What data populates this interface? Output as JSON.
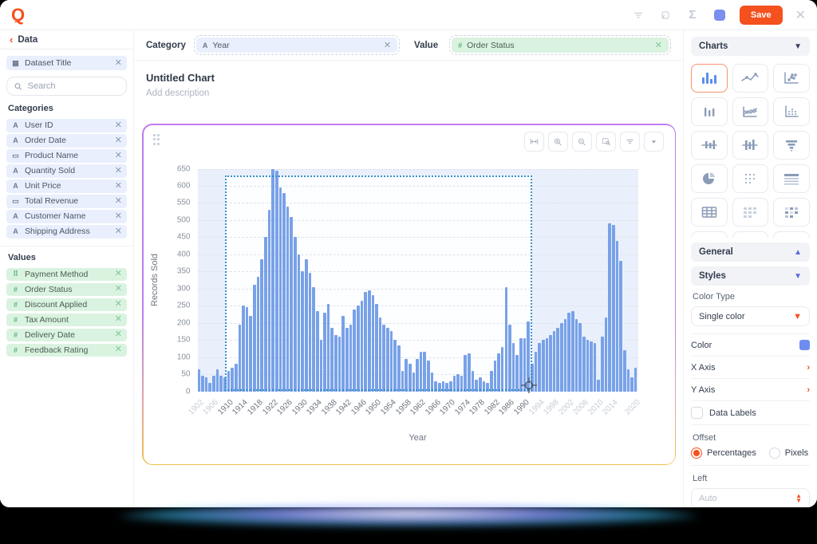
{
  "app": {
    "logo_letter": "Q",
    "accent_color": "#f4511e"
  },
  "header": {
    "icons": [
      "filter-lines-icon",
      "transform-icon",
      "sigma-icon",
      "blue-square-icon"
    ],
    "sigma_glyph": "Σ",
    "save_label": "Save",
    "close_glyph": "✕"
  },
  "sidebar": {
    "back_label": "Data",
    "dataset_chip": {
      "icon": "table-icon",
      "label": "Dataset Title",
      "remove_glyph": "✕"
    },
    "search_placeholder": "Search",
    "categories_title": "Categories",
    "categories": [
      {
        "icon": "text-field-icon",
        "label": "User ID"
      },
      {
        "icon": "text-field-icon",
        "label": "Order Date"
      },
      {
        "icon": "calendar-icon",
        "label": "Product Name"
      },
      {
        "icon": "text-field-icon",
        "label": "Quantity Sold"
      },
      {
        "icon": "text-field-icon",
        "label": "Unit Price"
      },
      {
        "icon": "calendar-icon",
        "label": "Total Revenue"
      },
      {
        "icon": "text-field-icon",
        "label": "Customer Name"
      },
      {
        "icon": "text-field-icon",
        "label": "Shipping Address"
      }
    ],
    "values_title": "Values",
    "values": [
      {
        "icon": "drag-handle-icon",
        "label": "Payment Method"
      },
      {
        "icon": "hash-icon",
        "label": "Order Status"
      },
      {
        "icon": "hash-icon",
        "label": "Discount Applied"
      },
      {
        "icon": "hash-icon",
        "label": "Tax Amount"
      },
      {
        "icon": "hash-icon",
        "label": "Delivery Date"
      },
      {
        "icon": "hash-icon",
        "label": "Feedback Rating"
      }
    ]
  },
  "builder": {
    "category_label": "Category",
    "category_chip": {
      "icon": "text-field-icon",
      "label": "Year",
      "remove_glyph": "✕"
    },
    "value_label": "Value",
    "value_chip": {
      "icon": "hash-icon",
      "label": "Order Status",
      "remove_glyph": "✕"
    },
    "title": "Untitled Chart",
    "description_placeholder": "Add description"
  },
  "chart_toolbar": [
    "fit-width-icon",
    "zoom-in-icon",
    "zoom-out-icon",
    "box-zoom-icon",
    "filter-lines-icon",
    "caret-down-icon"
  ],
  "chart_data": {
    "type": "bar",
    "title": "",
    "xlabel": "Year",
    "ylabel": "Records Sold",
    "x_range": [
      1902,
      2020
    ],
    "ylim": [
      0,
      650
    ],
    "grid": true,
    "legend": "none",
    "bar_color": "#78a1e8",
    "y_ticks": [
      0,
      50,
      100,
      150,
      200,
      250,
      300,
      350,
      400,
      450,
      500,
      550,
      600,
      650
    ],
    "x_tick_years": [
      1902,
      1906,
      1910,
      1914,
      1918,
      1922,
      1926,
      1930,
      1934,
      1938,
      1942,
      1946,
      1950,
      1954,
      1958,
      1962,
      1966,
      1970,
      1974,
      1978,
      1982,
      1986,
      1990,
      1994,
      1998,
      2002,
      2006,
      2010,
      2014,
      2020
    ],
    "values": [
      65,
      45,
      40,
      25,
      45,
      65,
      45,
      40,
      60,
      70,
      80,
      195,
      250,
      245,
      220,
      310,
      335,
      385,
      450,
      530,
      650,
      645,
      595,
      580,
      540,
      510,
      450,
      400,
      350,
      385,
      345,
      305,
      235,
      150,
      230,
      255,
      185,
      165,
      160,
      220,
      185,
      195,
      240,
      250,
      265,
      290,
      295,
      280,
      255,
      215,
      195,
      185,
      175,
      150,
      135,
      60,
      95,
      80,
      55,
      95,
      115,
      115,
      90,
      55,
      30,
      25,
      30,
      25,
      30,
      45,
      50,
      45,
      105,
      110,
      60,
      35,
      40,
      30,
      25,
      60,
      90,
      110,
      130,
      305,
      195,
      140,
      105,
      155,
      155,
      205,
      80,
      115,
      140,
      150,
      155,
      165,
      175,
      185,
      200,
      210,
      230,
      235,
      210,
      200,
      160,
      150,
      145,
      140,
      35,
      160,
      215,
      490,
      485,
      440,
      380,
      120,
      65,
      40,
      70
    ],
    "brush_selection": {
      "start_year": 1909,
      "end_year": 1992,
      "top_value": 630
    }
  },
  "charts_panel": {
    "header": "Charts",
    "selected_index": 0,
    "types": [
      "bar-chart",
      "line-chart",
      "scatter-plot",
      "bar-chart-thin",
      "multi-line-chart",
      "dot-column-chart",
      "candlestick-chart",
      "candlestick-dense",
      "funnel-chart",
      "pie-chart",
      "dot-matrix",
      "table-header",
      "table-grid",
      "matrix-light",
      "heatmap",
      "hidden",
      "hidden",
      "hidden"
    ],
    "general_label": "General",
    "styles_label": "Styles",
    "color_type_label": "Color Type",
    "color_type_value": "Single color",
    "color_label": "Color",
    "color_value": "#6d8ef0",
    "x_axis_label": "X Axis",
    "y_axis_label": "Y Axis",
    "data_labels_label": "Data Labels",
    "offset_label": "Offset",
    "offset_options": [
      {
        "label": "Percentages",
        "selected": true
      },
      {
        "label": "Pixels",
        "selected": false
      }
    ],
    "left_label": "Left",
    "left_placeholder": "Auto"
  }
}
